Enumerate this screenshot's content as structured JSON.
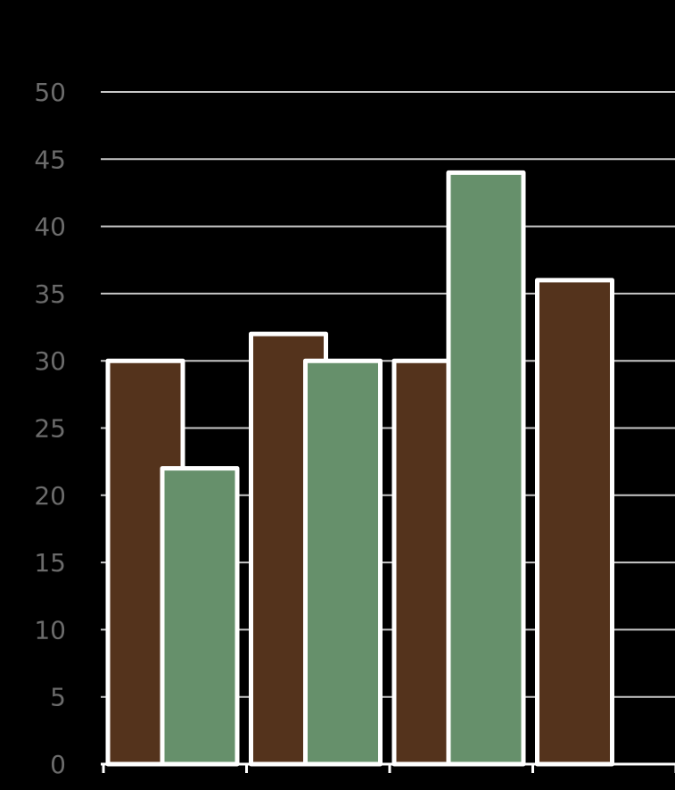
{
  "chart_data": {
    "type": "bar",
    "categories": [
      null,
      null,
      null,
      null
    ],
    "series": [
      {
        "color": "#54331c",
        "values": [
          30,
          32,
          30,
          36
        ]
      },
      {
        "color": "#66906b",
        "values": [
          22,
          30,
          44,
          null
        ]
      }
    ],
    "ylim": [
      0,
      50
    ],
    "yticks": [
      0,
      5,
      10,
      15,
      20,
      25,
      30,
      35,
      40,
      45,
      50
    ],
    "grid": true
  }
}
